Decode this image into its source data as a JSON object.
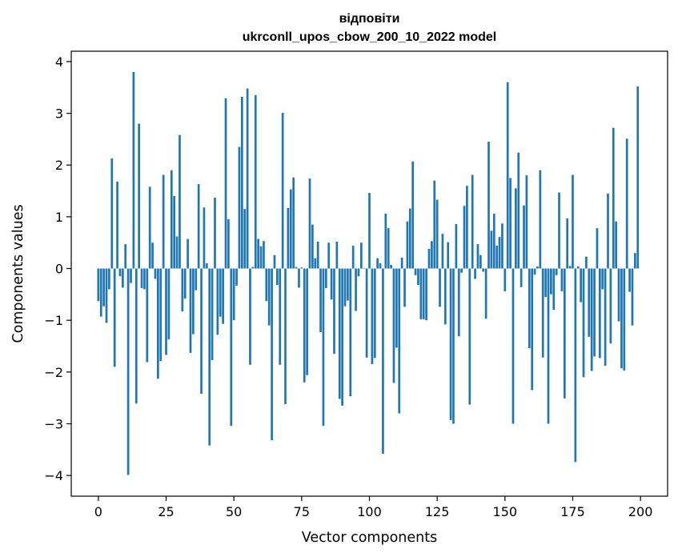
{
  "chart_data": {
    "type": "bar",
    "title": "відповіти",
    "subtitle": "ukrconll_upos_cbow_200_10_2022 model",
    "xlabel": "Vector components",
    "ylabel": "Components values",
    "xlim": [
      -10,
      210
    ],
    "ylim": [
      -4.4,
      4.2
    ],
    "xticks": [
      0,
      25,
      50,
      75,
      100,
      125,
      150,
      175,
      200
    ],
    "yticks": [
      -4,
      -3,
      -2,
      -1,
      0,
      1,
      2,
      3,
      4
    ],
    "grid": false,
    "bar_color": "#1f77b4",
    "x": [
      0,
      1,
      2,
      3,
      4,
      5,
      6,
      7,
      8,
      9,
      10,
      11,
      12,
      13,
      14,
      15,
      16,
      17,
      18,
      19,
      20,
      21,
      22,
      23,
      24,
      25,
      26,
      27,
      28,
      29,
      30,
      31,
      32,
      33,
      34,
      35,
      36,
      37,
      38,
      39,
      40,
      41,
      42,
      43,
      44,
      45,
      46,
      47,
      48,
      49,
      50,
      51,
      52,
      53,
      54,
      55,
      56,
      57,
      58,
      59,
      60,
      61,
      62,
      63,
      64,
      65,
      66,
      67,
      68,
      69,
      70,
      71,
      72,
      73,
      74,
      75,
      76,
      77,
      78,
      79,
      80,
      81,
      82,
      83,
      84,
      85,
      86,
      87,
      88,
      89,
      90,
      91,
      92,
      93,
      94,
      95,
      96,
      97,
      98,
      99,
      100,
      101,
      102,
      103,
      104,
      105,
      106,
      107,
      108,
      109,
      110,
      111,
      112,
      113,
      114,
      115,
      116,
      117,
      118,
      119,
      120,
      121,
      122,
      123,
      124,
      125,
      126,
      127,
      128,
      129,
      130,
      131,
      132,
      133,
      134,
      135,
      136,
      137,
      138,
      139,
      140,
      141,
      142,
      143,
      144,
      145,
      146,
      147,
      148,
      149,
      150,
      151,
      152,
      153,
      154,
      155,
      156,
      157,
      158,
      159,
      160,
      161,
      162,
      163,
      164,
      165,
      166,
      167,
      168,
      169,
      170,
      171,
      172,
      173,
      174,
      175,
      176,
      177,
      178,
      179,
      180,
      181,
      182,
      183,
      184,
      185,
      186,
      187,
      188,
      189,
      190,
      191,
      192,
      193,
      194,
      195,
      196,
      197,
      198,
      199
    ],
    "values": [
      -0.63,
      -0.93,
      -0.73,
      -1.05,
      -0.4,
      2.13,
      -1.9,
      1.68,
      -0.15,
      -0.37,
      0.47,
      -3.99,
      -0.28,
      3.8,
      -2.61,
      2.8,
      -0.38,
      -0.4,
      -1.81,
      1.58,
      0.5,
      -0.2,
      -2.13,
      -1.79,
      1.81,
      -1.67,
      -1.37,
      1.9,
      1.4,
      0.62,
      2.58,
      -0.83,
      -0.58,
      0.57,
      -1.63,
      -1.27,
      -0.42,
      1.63,
      -2.42,
      1.18,
      0.1,
      -3.42,
      -1.77,
      1.37,
      -1.28,
      -0.93,
      -1.07,
      3.29,
      0.95,
      -3.04,
      -1.0,
      -0.33,
      2.35,
      3.32,
      1.15,
      3.48,
      -1.86,
      0.03,
      3.35,
      0.57,
      0.43,
      0.53,
      -0.63,
      -1.1,
      -3.32,
      0.26,
      -0.32,
      -1.86,
      3.01,
      -2.62,
      1.17,
      1.53,
      1.76,
      0.03,
      -0.37,
      0.02,
      -2.2,
      -2.06,
      1.74,
      0.85,
      0.2,
      0.52,
      -1.23,
      -3.04,
      -0.38,
      0.5,
      -0.6,
      -1.65,
      0.52,
      -2.52,
      -2.65,
      -0.73,
      -0.62,
      -2.47,
      0.44,
      -0.82,
      -0.15,
      0.5,
      0.01,
      -1.72,
      1.46,
      -1.85,
      -1.73,
      0.2,
      0.1,
      -3.58,
      1.06,
      0.78,
      0.07,
      -2.21,
      -1.53,
      -2.8,
      0.21,
      -0.74,
      0.91,
      1.16,
      2.07,
      -0.13,
      -0.32,
      -0.98,
      -0.98,
      -1.0,
      0.38,
      0.53,
      1.7,
      1.33,
      -0.74,
      0.67,
      -1.08,
      0.51,
      -2.93,
      -3.0,
      0.86,
      -1.31,
      -0.08,
      1.21,
      1.6,
      -2.63,
      1.81,
      -0.2,
      0.47,
      0.26,
      -0.06,
      -0.97,
      2.45,
      0.73,
      1.06,
      0.44,
      0.61,
      0.87,
      -0.44,
      3.6,
      1.75,
      -3.0,
      1.55,
      2.24,
      -0.36,
      1.22,
      1.8,
      -1.54,
      -2.35,
      -0.12,
      0.04,
      1.9,
      -1.72,
      -0.55,
      -3.0,
      -0.5,
      -0.8,
      -0.13,
      1.47,
      -0.44,
      -2.51,
      0.97,
      0.05,
      1.81,
      -3.74,
      0.04,
      -0.65,
      -2.1,
      0.23,
      -1.32,
      -1.98,
      -1.7,
      0.78,
      -1.73,
      -0.4,
      -1.88,
      1.45,
      -1.45,
      2.72,
      0.91,
      -1.02,
      -1.93,
      -1.97,
      2.51,
      -0.45,
      -1.1,
      0.3,
      3.52
    ]
  }
}
